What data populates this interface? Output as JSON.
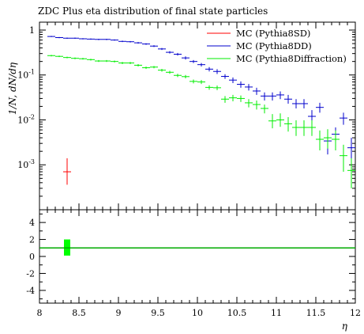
{
  "chart_data": {
    "type": "scatter",
    "title": "ZDC Plus eta distribution of final state particles",
    "xlabel": "η",
    "ylabel": "1/N, dN/dη",
    "xlim": [
      8,
      12
    ],
    "ylim": [
      0.0001,
      1.5
    ],
    "yscale": "log",
    "ratio_ylim": [
      -5.5,
      5.5
    ],
    "x_ticks": [
      "8",
      "8.5",
      "9",
      "9.5",
      "10",
      "10.5",
      "11",
      "11.5",
      "12"
    ],
    "y_ticks": [
      "1",
      "10^-1",
      "10^-2",
      "10^-3"
    ],
    "ratio_ticks": [
      "4",
      "2",
      "0",
      "-2",
      "-4"
    ],
    "legend_position": "top-right",
    "grid": false,
    "series": [
      {
        "name": "MC (Pythia8SD)",
        "color": "#ff0000",
        "points": [
          {
            "x": 8.35,
            "y": 0.0007,
            "ylo": 0.00036,
            "yhi": 0.0014
          }
        ]
      },
      {
        "name": "MC (Pythia8DD)",
        "color": "#0000cc",
        "points": [
          {
            "x": 8.15,
            "y": 0.72,
            "ylo": 0.7,
            "yhi": 0.74
          },
          {
            "x": 8.25,
            "y": 0.68,
            "ylo": 0.66,
            "yhi": 0.7
          },
          {
            "x": 8.35,
            "y": 0.66,
            "ylo": 0.64,
            "yhi": 0.68
          },
          {
            "x": 8.45,
            "y": 0.66,
            "ylo": 0.64,
            "yhi": 0.68
          },
          {
            "x": 8.55,
            "y": 0.64,
            "ylo": 0.62,
            "yhi": 0.66
          },
          {
            "x": 8.65,
            "y": 0.63,
            "ylo": 0.61,
            "yhi": 0.65
          },
          {
            "x": 8.75,
            "y": 0.62,
            "ylo": 0.6,
            "yhi": 0.64
          },
          {
            "x": 8.85,
            "y": 0.62,
            "ylo": 0.6,
            "yhi": 0.64
          },
          {
            "x": 8.95,
            "y": 0.6,
            "ylo": 0.58,
            "yhi": 0.62
          },
          {
            "x": 9.05,
            "y": 0.56,
            "ylo": 0.54,
            "yhi": 0.58
          },
          {
            "x": 9.15,
            "y": 0.55,
            "ylo": 0.53,
            "yhi": 0.57
          },
          {
            "x": 9.25,
            "y": 0.52,
            "ylo": 0.5,
            "yhi": 0.54
          },
          {
            "x": 9.35,
            "y": 0.49,
            "ylo": 0.47,
            "yhi": 0.51
          },
          {
            "x": 9.45,
            "y": 0.44,
            "ylo": 0.42,
            "yhi": 0.46
          },
          {
            "x": 9.55,
            "y": 0.38,
            "ylo": 0.36,
            "yhi": 0.4
          },
          {
            "x": 9.65,
            "y": 0.32,
            "ylo": 0.3,
            "yhi": 0.34
          },
          {
            "x": 9.75,
            "y": 0.29,
            "ylo": 0.27,
            "yhi": 0.31
          },
          {
            "x": 9.85,
            "y": 0.24,
            "ylo": 0.22,
            "yhi": 0.26
          },
          {
            "x": 9.95,
            "y": 0.2,
            "ylo": 0.185,
            "yhi": 0.215
          },
          {
            "x": 10.05,
            "y": 0.17,
            "ylo": 0.155,
            "yhi": 0.185
          },
          {
            "x": 10.15,
            "y": 0.135,
            "ylo": 0.12,
            "yhi": 0.15
          },
          {
            "x": 10.25,
            "y": 0.12,
            "ylo": 0.105,
            "yhi": 0.135
          },
          {
            "x": 10.35,
            "y": 0.093,
            "ylo": 0.082,
            "yhi": 0.104
          },
          {
            "x": 10.45,
            "y": 0.077,
            "ylo": 0.066,
            "yhi": 0.088
          },
          {
            "x": 10.55,
            "y": 0.062,
            "ylo": 0.052,
            "yhi": 0.072
          },
          {
            "x": 10.65,
            "y": 0.054,
            "ylo": 0.045,
            "yhi": 0.063
          },
          {
            "x": 10.75,
            "y": 0.044,
            "ylo": 0.036,
            "yhi": 0.052
          },
          {
            "x": 10.85,
            "y": 0.034,
            "ylo": 0.027,
            "yhi": 0.041
          },
          {
            "x": 10.95,
            "y": 0.034,
            "ylo": 0.027,
            "yhi": 0.041
          },
          {
            "x": 11.05,
            "y": 0.036,
            "ylo": 0.029,
            "yhi": 0.043
          },
          {
            "x": 11.15,
            "y": 0.029,
            "ylo": 0.023,
            "yhi": 0.036
          },
          {
            "x": 11.25,
            "y": 0.023,
            "ylo": 0.018,
            "yhi": 0.029
          },
          {
            "x": 11.35,
            "y": 0.023,
            "ylo": 0.018,
            "yhi": 0.029
          },
          {
            "x": 11.45,
            "y": 0.012,
            "ylo": 0.0085,
            "yhi": 0.0165
          },
          {
            "x": 11.55,
            "y": 0.019,
            "ylo": 0.0145,
            "yhi": 0.024
          },
          {
            "x": 11.65,
            "y": 0.0034,
            "ylo": 0.0017,
            "yhi": 0.0053
          },
          {
            "x": 11.75,
            "y": 0.0048,
            "ylo": 0.003,
            "yhi": 0.0068
          },
          {
            "x": 11.85,
            "y": 0.011,
            "ylo": 0.0078,
            "yhi": 0.0145
          },
          {
            "x": 11.95,
            "y": 0.0024,
            "ylo": 0.0012,
            "yhi": 0.004
          }
        ]
      },
      {
        "name": "MC (Pythia8Diffraction)",
        "color": "#00ee00",
        "points": [
          {
            "x": 8.15,
            "y": 0.27,
            "ylo": 0.26,
            "yhi": 0.28
          },
          {
            "x": 8.25,
            "y": 0.26,
            "ylo": 0.25,
            "yhi": 0.27
          },
          {
            "x": 8.35,
            "y": 0.245,
            "ylo": 0.235,
            "yhi": 0.255
          },
          {
            "x": 8.45,
            "y": 0.235,
            "ylo": 0.225,
            "yhi": 0.245
          },
          {
            "x": 8.55,
            "y": 0.23,
            "ylo": 0.22,
            "yhi": 0.24
          },
          {
            "x": 8.65,
            "y": 0.22,
            "ylo": 0.21,
            "yhi": 0.23
          },
          {
            "x": 8.75,
            "y": 0.205,
            "ylo": 0.195,
            "yhi": 0.215
          },
          {
            "x": 8.85,
            "y": 0.205,
            "ylo": 0.195,
            "yhi": 0.215
          },
          {
            "x": 8.95,
            "y": 0.2,
            "ylo": 0.19,
            "yhi": 0.21
          },
          {
            "x": 9.05,
            "y": 0.185,
            "ylo": 0.175,
            "yhi": 0.195
          },
          {
            "x": 9.15,
            "y": 0.185,
            "ylo": 0.175,
            "yhi": 0.195
          },
          {
            "x": 9.25,
            "y": 0.165,
            "ylo": 0.155,
            "yhi": 0.175
          },
          {
            "x": 9.35,
            "y": 0.145,
            "ylo": 0.136,
            "yhi": 0.154
          },
          {
            "x": 9.45,
            "y": 0.15,
            "ylo": 0.141,
            "yhi": 0.159
          },
          {
            "x": 9.55,
            "y": 0.128,
            "ylo": 0.119,
            "yhi": 0.137
          },
          {
            "x": 9.65,
            "y": 0.115,
            "ylo": 0.106,
            "yhi": 0.124
          },
          {
            "x": 9.75,
            "y": 0.098,
            "ylo": 0.09,
            "yhi": 0.106
          },
          {
            "x": 9.85,
            "y": 0.092,
            "ylo": 0.084,
            "yhi": 0.1
          },
          {
            "x": 9.95,
            "y": 0.072,
            "ylo": 0.065,
            "yhi": 0.079
          },
          {
            "x": 10.05,
            "y": 0.07,
            "ylo": 0.063,
            "yhi": 0.077
          },
          {
            "x": 10.15,
            "y": 0.053,
            "ylo": 0.047,
            "yhi": 0.059
          },
          {
            "x": 10.25,
            "y": 0.052,
            "ylo": 0.046,
            "yhi": 0.058
          },
          {
            "x": 10.35,
            "y": 0.029,
            "ylo": 0.024,
            "yhi": 0.034
          },
          {
            "x": 10.45,
            "y": 0.031,
            "ylo": 0.026,
            "yhi": 0.036
          },
          {
            "x": 10.55,
            "y": 0.03,
            "ylo": 0.025,
            "yhi": 0.035
          },
          {
            "x": 10.65,
            "y": 0.024,
            "ylo": 0.019,
            "yhi": 0.029
          },
          {
            "x": 10.75,
            "y": 0.022,
            "ylo": 0.017,
            "yhi": 0.027
          },
          {
            "x": 10.85,
            "y": 0.018,
            "ylo": 0.014,
            "yhi": 0.022
          },
          {
            "x": 10.95,
            "y": 0.0095,
            "ylo": 0.0065,
            "yhi": 0.0135
          },
          {
            "x": 11.05,
            "y": 0.01,
            "ylo": 0.007,
            "yhi": 0.014
          },
          {
            "x": 11.15,
            "y": 0.0082,
            "ylo": 0.0055,
            "yhi": 0.0115
          },
          {
            "x": 11.25,
            "y": 0.0068,
            "ylo": 0.0044,
            "yhi": 0.0098
          },
          {
            "x": 11.35,
            "y": 0.0068,
            "ylo": 0.0044,
            "yhi": 0.0098
          },
          {
            "x": 11.45,
            "y": 0.0068,
            "ylo": 0.0044,
            "yhi": 0.0098
          },
          {
            "x": 11.55,
            "y": 0.0037,
            "ylo": 0.0021,
            "yhi": 0.0058
          },
          {
            "x": 11.65,
            "y": 0.004,
            "ylo": 0.0023,
            "yhi": 0.0062
          },
          {
            "x": 11.75,
            "y": 0.0037,
            "ylo": 0.0021,
            "yhi": 0.0058
          },
          {
            "x": 11.85,
            "y": 0.0016,
            "ylo": 0.0007,
            "yhi": 0.0028
          },
          {
            "x": 11.95,
            "y": 0.00075,
            "ylo": 0.0003,
            "yhi": 0.0014
          }
        ]
      }
    ],
    "ratio": {
      "line_value": 1,
      "line_color": "#00aa00",
      "band": {
        "x": 8.35,
        "halfwidth": 0.04,
        "ylo": 0.1,
        "yhi": 2.0,
        "color": "#00ff00"
      }
    }
  }
}
